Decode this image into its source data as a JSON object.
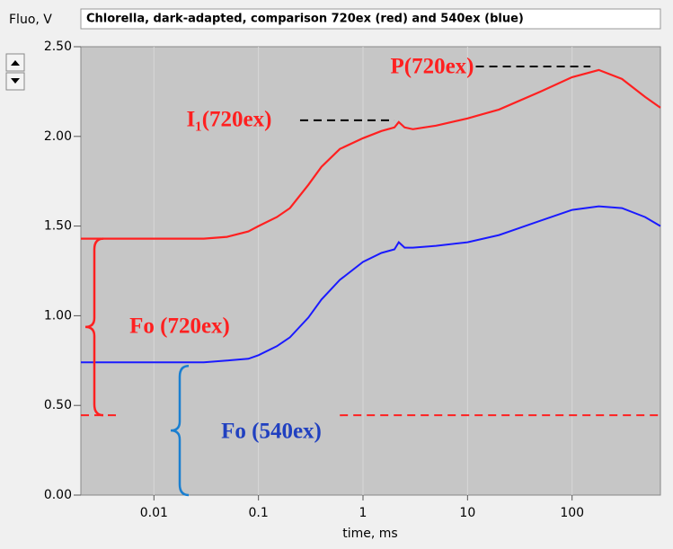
{
  "chart_data": {
    "type": "line",
    "title": "Chlorella, dark-adapted, comparison 720ex (red) and 540ex (blue)",
    "ylabel": "Fluo, V",
    "xlabel": "time, ms",
    "xscale": "log",
    "x": [
      0.002,
      0.01,
      0.03,
      0.05,
      0.08,
      0.1,
      0.15,
      0.2,
      0.3,
      0.4,
      0.6,
      1,
      1.5,
      2,
      2.2,
      2.5,
      3,
      5,
      10,
      20,
      50,
      100,
      180,
      300,
      500,
      700
    ],
    "series": [
      {
        "color": "#ff2020",
        "values": [
          1.43,
          1.43,
          1.43,
          1.44,
          1.47,
          1.5,
          1.55,
          1.6,
          1.73,
          1.83,
          1.93,
          1.99,
          2.03,
          2.05,
          2.08,
          2.05,
          2.04,
          2.06,
          2.1,
          2.15,
          2.25,
          2.33,
          2.37,
          2.32,
          2.22,
          2.16
        ]
      },
      {
        "color": "#1a1aff",
        "values": [
          0.74,
          0.74,
          0.74,
          0.75,
          0.76,
          0.78,
          0.83,
          0.88,
          0.99,
          1.09,
          1.2,
          1.3,
          1.35,
          1.37,
          1.41,
          1.38,
          1.38,
          1.39,
          1.41,
          1.45,
          1.53,
          1.59,
          1.61,
          1.6,
          1.55,
          1.5
        ]
      }
    ],
    "xlim": [
      0.002,
      700
    ],
    "ylim": [
      0,
      2.5
    ],
    "xticks": [
      0.01,
      0.1,
      1,
      10,
      100
    ],
    "yticks": [
      {
        "value": 0,
        "label": "0.00"
      },
      {
        "value": 0.5,
        "label": "0.50"
      },
      {
        "value": 1,
        "label": "1.00"
      },
      {
        "value": 1.5,
        "label": "1.50"
      },
      {
        "value": 2,
        "label": "2.00"
      },
      {
        "value": 2.5,
        "label": "2.50"
      }
    ],
    "grid": true,
    "reference_lines": [
      {
        "y": 0.445,
        "x": [
          0.002,
          0.0045
        ],
        "color": "#ff2020"
      },
      {
        "y": 0.445,
        "x": [
          0.6,
          700
        ],
        "color": "#ff2020"
      },
      {
        "y": 2.09,
        "x": [
          0.25,
          2
        ],
        "color": "#000000"
      },
      {
        "y": 2.39,
        "x": [
          12,
          150
        ],
        "color": "#000000"
      }
    ],
    "annotations": [
      {
        "text": "P(720ex)",
        "color": "#ff2020"
      },
      {
        "text": "I₁(720ex)",
        "color": "#ff2020"
      },
      {
        "text": "Fo (720ex)",
        "color": "#ff2020"
      },
      {
        "text": "Fo (540ex)",
        "color": "#2040c0"
      }
    ]
  }
}
